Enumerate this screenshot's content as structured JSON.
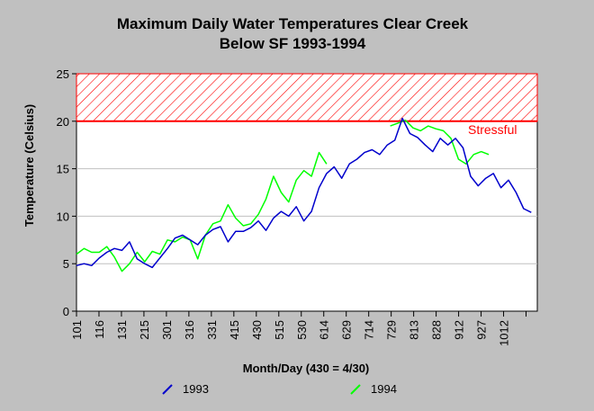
{
  "chart_data": {
    "type": "line",
    "title": "Maximum Daily Water Temperatures Clear Creek",
    "subtitle": "Below SF 1993-1994",
    "xlabel": "Month/Day (430 = 4/30)",
    "ylabel": "Temperature (Celsius)",
    "ylim": [
      0,
      25
    ],
    "yticks": [
      "0",
      "5",
      "10",
      "15",
      "20",
      "25"
    ],
    "grid": true,
    "xtick_labels": [
      "101",
      "116",
      "131",
      "215",
      "301",
      "316",
      "331",
      "415",
      "430",
      "515",
      "530",
      "614",
      "629",
      "714",
      "729",
      "813",
      "828",
      "912",
      "927",
      "1012"
    ],
    "threshold": {
      "label": "Stressful",
      "from": 20,
      "to": 25,
      "color": "#ff0000"
    },
    "legend_position": "bottom",
    "series": [
      {
        "name": "1993",
        "color": "#0000cc",
        "points": [
          [
            "1/1",
            4.8
          ],
          [
            "1/6",
            5.0
          ],
          [
            "1/11",
            4.8
          ],
          [
            "1/16",
            5.6
          ],
          [
            "1/21",
            6.2
          ],
          [
            "1/26",
            6.6
          ],
          [
            "1/31",
            6.4
          ],
          [
            "2/5",
            7.3
          ],
          [
            "2/10",
            5.5
          ],
          [
            "2/15",
            5.0
          ],
          [
            "2/20",
            4.6
          ],
          [
            "2/25",
            5.6
          ],
          [
            "3/2",
            6.6
          ],
          [
            "3/7",
            7.7
          ],
          [
            "3/12",
            8.0
          ],
          [
            "3/17",
            7.5
          ],
          [
            "3/22",
            7.0
          ],
          [
            "3/27",
            8.0
          ],
          [
            "4/1",
            8.6
          ],
          [
            "4/6",
            8.9
          ],
          [
            "4/11",
            7.3
          ],
          [
            "4/16",
            8.4
          ],
          [
            "4/21",
            8.4
          ],
          [
            "4/26",
            8.8
          ],
          [
            "5/1",
            9.5
          ],
          [
            "5/6",
            8.5
          ],
          [
            "5/11",
            9.8
          ],
          [
            "5/16",
            10.5
          ],
          [
            "5/21",
            10.0
          ],
          [
            "5/26",
            11.0
          ],
          [
            "5/31",
            9.5
          ],
          [
            "6/5",
            10.5
          ],
          [
            "6/10",
            13.0
          ],
          [
            "6/15",
            14.5
          ],
          [
            "6/20",
            15.2
          ],
          [
            "6/25",
            14.0
          ],
          [
            "6/30",
            15.5
          ],
          [
            "7/5",
            16.0
          ],
          [
            "7/10",
            16.7
          ],
          [
            "7/15",
            17.0
          ],
          [
            "7/20",
            16.5
          ],
          [
            "7/25",
            17.5
          ],
          [
            "7/30",
            18.0
          ],
          [
            "8/4",
            20.3
          ],
          [
            "8/9",
            18.7
          ],
          [
            "8/14",
            18.3
          ],
          [
            "8/19",
            17.5
          ],
          [
            "8/24",
            16.8
          ],
          [
            "8/29",
            18.2
          ],
          [
            "9/3",
            17.5
          ],
          [
            "9/8",
            18.2
          ],
          [
            "9/13",
            17.2
          ],
          [
            "9/18",
            14.2
          ],
          [
            "9/23",
            13.2
          ],
          [
            "9/28",
            14.0
          ],
          [
            "10/3",
            14.5
          ],
          [
            "10/8",
            13.0
          ],
          [
            "10/13",
            13.8
          ],
          [
            "10/18",
            12.5
          ],
          [
            "10/23",
            10.8
          ],
          [
            "10/28",
            10.4
          ]
        ]
      },
      {
        "name": "1994",
        "color": "#00ff00",
        "points": [
          [
            "1/1",
            6.0
          ],
          [
            "1/6",
            6.6
          ],
          [
            "1/11",
            6.2
          ],
          [
            "1/16",
            6.2
          ],
          [
            "1/21",
            6.8
          ],
          [
            "1/26",
            5.7
          ],
          [
            "1/31",
            4.2
          ],
          [
            "2/5",
            5.0
          ],
          [
            "2/10",
            6.2
          ],
          [
            "2/15",
            5.2
          ],
          [
            "2/20",
            6.3
          ],
          [
            "2/25",
            6.0
          ],
          [
            "3/2",
            7.5
          ],
          [
            "3/7",
            7.3
          ],
          [
            "3/12",
            7.8
          ],
          [
            "3/17",
            7.5
          ],
          [
            "3/22",
            5.5
          ],
          [
            "3/27",
            8.0
          ],
          [
            "4/1",
            9.2
          ],
          [
            "4/6",
            9.5
          ],
          [
            "4/11",
            11.2
          ],
          [
            "4/16",
            9.8
          ],
          [
            "4/21",
            9.0
          ],
          [
            "4/26",
            9.2
          ],
          [
            "5/1",
            10.2
          ],
          [
            "5/6",
            11.8
          ],
          [
            "5/11",
            14.2
          ],
          [
            "5/16",
            12.5
          ],
          [
            "5/21",
            11.5
          ],
          [
            "5/26",
            13.8
          ],
          [
            "5/31",
            14.8
          ],
          [
            "6/5",
            14.2
          ],
          [
            "6/10",
            16.7
          ],
          [
            "6/15",
            15.5
          ],
          [
            "7/27",
            19.5
          ],
          [
            "8/1",
            19.8
          ],
          [
            "8/6",
            20.1
          ],
          [
            "8/11",
            19.3
          ],
          [
            "8/16",
            19.0
          ],
          [
            "8/21",
            19.5
          ],
          [
            "8/26",
            19.2
          ],
          [
            "8/31",
            19.0
          ],
          [
            "9/5",
            18.2
          ],
          [
            "9/10",
            16.0
          ],
          [
            "9/15",
            15.5
          ],
          [
            "9/20",
            16.5
          ],
          [
            "9/25",
            16.8
          ],
          [
            "9/30",
            16.5
          ]
        ]
      }
    ]
  }
}
